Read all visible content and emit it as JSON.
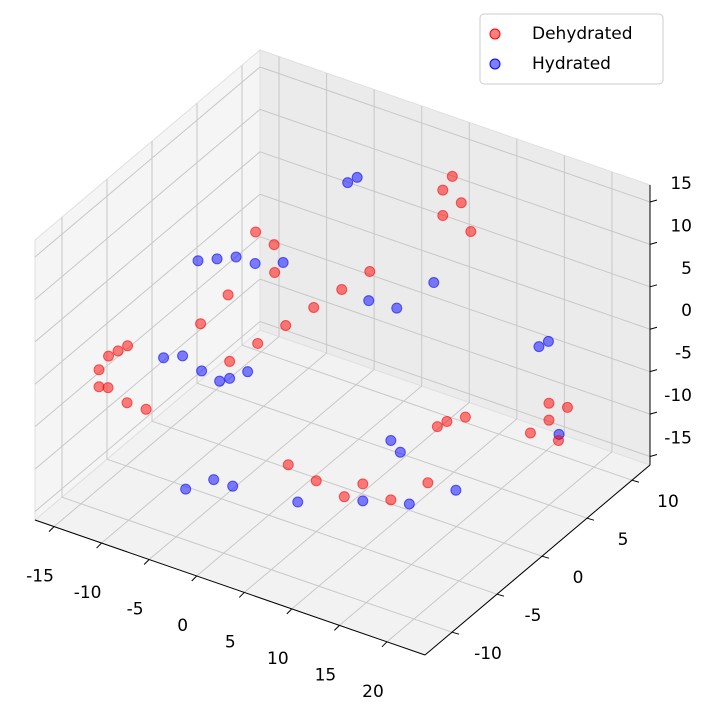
{
  "chart_data": {
    "type": "scatter3d",
    "xlim": [
      -17,
      24
    ],
    "ylim": [
      -13,
      12
    ],
    "zlim": [
      -16,
      17
    ],
    "xticks": [
      -15,
      -10,
      -5,
      0,
      5,
      10,
      15,
      20
    ],
    "yticks": [
      -10,
      -5,
      0,
      5,
      10
    ],
    "zticks": [
      -15,
      -10,
      -5,
      0,
      5,
      10,
      15
    ],
    "grid": true,
    "legend": "upper right",
    "series": [
      {
        "name": "Dehydrated",
        "color": "#ff0000",
        "x": [
          -15,
          -15,
          -14,
          -13,
          -12,
          -15,
          -13,
          -11,
          -6,
          -4,
          -2,
          0,
          2,
          4,
          6,
          6,
          7,
          7,
          8,
          20,
          20,
          21,
          21,
          19,
          5,
          7,
          8,
          10,
          12,
          3,
          13,
          14,
          15,
          -8,
          -7,
          -6,
          -9,
          -10
        ],
        "y": [
          -8,
          -8,
          -8,
          -8,
          -8,
          -7,
          -7,
          -7,
          -3,
          -2,
          -1,
          0,
          1,
          2,
          8,
          8,
          8,
          9,
          9,
          5,
          5,
          5,
          6,
          4,
          -5,
          -4,
          -3,
          -2,
          0,
          -6,
          0,
          0,
          1,
          2,
          3,
          2,
          0,
          -2
        ],
        "z": [
          -4,
          -2,
          0,
          1,
          2,
          -5,
          -6,
          -6,
          -2,
          0,
          2,
          4,
          6,
          8,
          10,
          13,
          15,
          11,
          8,
          -4,
          -6,
          -8,
          -5,
          -7,
          -10,
          -12,
          -11,
          -13,
          -12,
          -8,
          -5,
          -4,
          -4,
          8,
          6,
          4,
          2,
          0
        ]
      },
      {
        "name": "Hydrated",
        "color": "#0000ff",
        "x": [
          -15,
          -13,
          -11,
          -9,
          -7,
          -12,
          -10,
          -8,
          -6,
          -4,
          -2,
          0,
          4,
          8,
          11,
          14,
          10,
          11,
          18,
          19,
          22,
          -4,
          -3,
          2,
          4,
          6,
          -8,
          -6
        ],
        "y": [
          3,
          3,
          3,
          3,
          4,
          -4,
          -4,
          -4,
          -3,
          -10,
          -9,
          -9,
          -6,
          -3,
          -1,
          1,
          -2,
          -2,
          6,
          6,
          4,
          8,
          8,
          4,
          5,
          7,
          -2,
          -1
        ],
        "z": [
          1,
          2,
          3,
          3,
          3,
          -3,
          -2,
          -3,
          -4,
          -10,
          -9,
          -9,
          -12,
          -13,
          -14,
          -13,
          -6,
          -7,
          1,
          2,
          -6,
          10,
          11,
          2,
          1,
          3,
          -6,
          -5
        ]
      }
    ]
  }
}
